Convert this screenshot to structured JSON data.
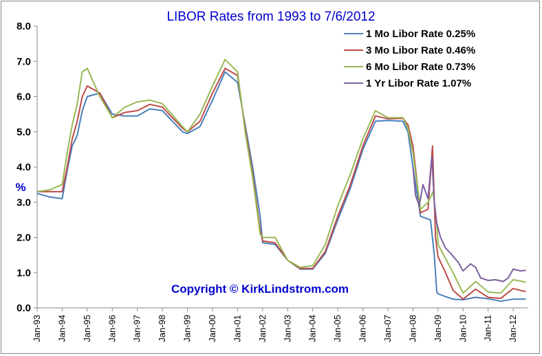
{
  "chart_data": {
    "type": "line",
    "title": "LIBOR Rates from 1993 to 7/6/2012",
    "ylabel": "%",
    "xlabel": "",
    "ylim": [
      0,
      8
    ],
    "yticks": [
      "0.0",
      "1.0",
      "2.0",
      "3.0",
      "4.0",
      "5.0",
      "6.0",
      "7.0",
      "8.0"
    ],
    "xlim": [
      1993.0,
      2012.6
    ],
    "xticks": [
      "Jan-93",
      "Jan-94",
      "Jan-95",
      "Jan-96",
      "Jan-97",
      "Jan-98",
      "Jan-99",
      "Jan-00",
      "Jan-01",
      "Jan-02",
      "Jan-03",
      "Jan-04",
      "Jan-05",
      "Jan-06",
      "Jan-07",
      "Jan-08",
      "Jan-09",
      "Jan-10",
      "Jan-11",
      "Jan-12"
    ],
    "grid": false,
    "legend_position": "top-right",
    "annotation": "Copyright © KirkLindstrom.com",
    "series": [
      {
        "name": "1 Mo Libor Rate 0.25%",
        "color": "#4a7ebb",
        "x": [
          1993.0,
          1993.5,
          1994.0,
          1994.2,
          1994.4,
          1994.6,
          1994.8,
          1995.0,
          1995.5,
          1996.0,
          1996.5,
          1997.0,
          1997.5,
          1998.0,
          1998.8,
          1999.0,
          1999.5,
          2000.0,
          2000.5,
          2001.0,
          2001.3,
          2001.6,
          2001.9,
          2002.0,
          2002.5,
          2003.0,
          2003.5,
          2004.0,
          2004.5,
          2005.0,
          2005.5,
          2006.0,
          2006.5,
          2007.0,
          2007.6,
          2007.8,
          2008.0,
          2008.3,
          2008.7,
          2008.85,
          2008.95,
          2009.0,
          2009.3,
          2009.6,
          2010.0,
          2010.5,
          2011.0,
          2011.5,
          2012.0,
          2012.5
        ],
        "y": [
          3.25,
          3.15,
          3.1,
          3.9,
          4.6,
          4.9,
          5.6,
          6.0,
          6.1,
          5.5,
          5.45,
          5.45,
          5.65,
          5.6,
          5.0,
          4.95,
          5.15,
          5.9,
          6.7,
          6.4,
          5.2,
          4.0,
          2.6,
          1.85,
          1.8,
          1.35,
          1.1,
          1.1,
          1.55,
          2.5,
          3.4,
          4.5,
          5.3,
          5.32,
          5.3,
          5.0,
          4.0,
          2.6,
          2.5,
          1.5,
          0.45,
          0.4,
          0.32,
          0.25,
          0.23,
          0.3,
          0.26,
          0.19,
          0.25,
          0.25
        ]
      },
      {
        "name": "3 Mo Libor Rate 0.46%",
        "color": "#be4b48",
        "x": [
          1993.0,
          1993.5,
          1994.0,
          1994.2,
          1994.4,
          1994.6,
          1994.8,
          1995.0,
          1995.5,
          1996.0,
          1996.5,
          1997.0,
          1997.5,
          1998.0,
          1998.8,
          1999.0,
          1999.5,
          2000.0,
          2000.5,
          2001.0,
          2001.3,
          2001.6,
          2001.9,
          2002.0,
          2002.5,
          2003.0,
          2003.5,
          2004.0,
          2004.5,
          2005.0,
          2005.5,
          2006.0,
          2006.5,
          2007.0,
          2007.6,
          2007.8,
          2008.0,
          2008.3,
          2008.6,
          2008.78,
          2008.9,
          2009.0,
          2009.3,
          2009.6,
          2010.0,
          2010.5,
          2011.0,
          2011.5,
          2012.0,
          2012.5
        ],
        "y": [
          3.3,
          3.3,
          3.3,
          4.0,
          4.8,
          5.3,
          6.0,
          6.3,
          6.1,
          5.4,
          5.55,
          5.6,
          5.78,
          5.7,
          5.1,
          5.0,
          5.3,
          6.1,
          6.8,
          6.6,
          5.1,
          3.8,
          2.2,
          1.9,
          1.85,
          1.35,
          1.12,
          1.12,
          1.6,
          2.6,
          3.5,
          4.6,
          5.45,
          5.37,
          5.38,
          5.2,
          4.6,
          2.7,
          2.8,
          4.6,
          2.0,
          1.45,
          1.0,
          0.5,
          0.25,
          0.53,
          0.3,
          0.27,
          0.55,
          0.46
        ]
      },
      {
        "name": "6 Mo Libor Rate 0.73%",
        "color": "#98b954",
        "x": [
          1993.0,
          1993.5,
          1994.0,
          1994.2,
          1994.4,
          1994.6,
          1994.8,
          1995.0,
          1995.5,
          1996.0,
          1996.5,
          1997.0,
          1997.5,
          1998.0,
          1998.8,
          1999.0,
          1999.5,
          2000.0,
          2000.5,
          2001.0,
          2001.3,
          2001.6,
          2001.9,
          2002.0,
          2002.5,
          2003.0,
          2003.5,
          2004.0,
          2004.5,
          2005.0,
          2005.5,
          2006.0,
          2006.5,
          2007.0,
          2007.6,
          2007.8,
          2008.0,
          2008.3,
          2008.6,
          2008.8,
          2008.95,
          2009.0,
          2009.3,
          2009.6,
          2010.0,
          2010.5,
          2011.0,
          2011.5,
          2012.0,
          2012.5
        ],
        "y": [
          3.3,
          3.35,
          3.5,
          4.4,
          5.2,
          5.8,
          6.7,
          6.8,
          6.0,
          5.4,
          5.7,
          5.85,
          5.9,
          5.8,
          5.15,
          5.0,
          5.5,
          6.3,
          7.05,
          6.7,
          5.0,
          3.7,
          2.1,
          2.0,
          2.0,
          1.35,
          1.15,
          1.2,
          1.8,
          2.9,
          3.8,
          4.8,
          5.6,
          5.4,
          5.4,
          5.1,
          4.4,
          2.8,
          3.0,
          3.3,
          2.4,
          1.8,
          1.4,
          1.0,
          0.42,
          0.75,
          0.45,
          0.42,
          0.8,
          0.73
        ]
      },
      {
        "name": "1 Yr Libor Rate 1.07%",
        "color": "#7d60a0",
        "x": [
          2008.0,
          2008.1,
          2008.25,
          2008.4,
          2008.6,
          2008.75,
          2008.85,
          2008.95,
          2009.1,
          2009.3,
          2009.5,
          2009.8,
          2010.0,
          2010.3,
          2010.5,
          2010.7,
          2011.0,
          2011.3,
          2011.6,
          2011.8,
          2012.0,
          2012.3,
          2012.5
        ],
        "y": [
          4.0,
          3.2,
          2.9,
          3.5,
          3.1,
          4.3,
          3.0,
          2.4,
          2.0,
          1.7,
          1.55,
          1.3,
          1.05,
          1.25,
          1.15,
          0.85,
          0.78,
          0.8,
          0.75,
          0.85,
          1.1,
          1.05,
          1.07
        ]
      }
    ]
  }
}
